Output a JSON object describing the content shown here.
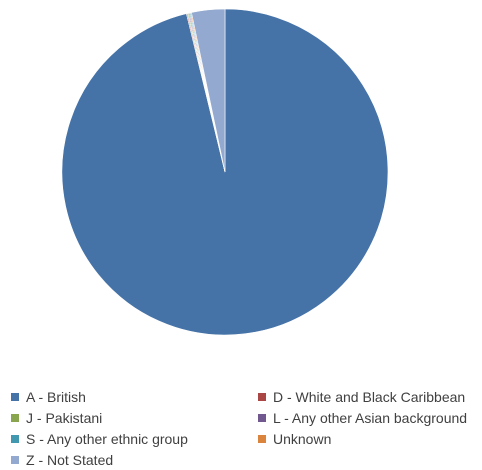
{
  "chart_data": {
    "type": "pie",
    "title": "",
    "start_angle_deg": 0,
    "direction": "clockwise",
    "slices": [
      {
        "label": "A - British",
        "value": 96.2,
        "color": "#4572a7"
      },
      {
        "label": "D - White and Black Caribbean",
        "value": 0.1,
        "color": "#aa4643"
      },
      {
        "label": "J - Pakistani",
        "value": 0.1,
        "color": "#89a54e"
      },
      {
        "label": "L - Any other Asian background",
        "value": 0.1,
        "color": "#71588f"
      },
      {
        "label": "S - Any other ethnic group",
        "value": 0.1,
        "color": "#4198af"
      },
      {
        "label": "Unknown",
        "value": 0.1,
        "color": "#db843d"
      },
      {
        "label": "Z - Not Stated",
        "value": 3.3,
        "color": "#93a9cf"
      }
    ],
    "legend": {
      "position": "bottom",
      "columns": 2
    }
  }
}
